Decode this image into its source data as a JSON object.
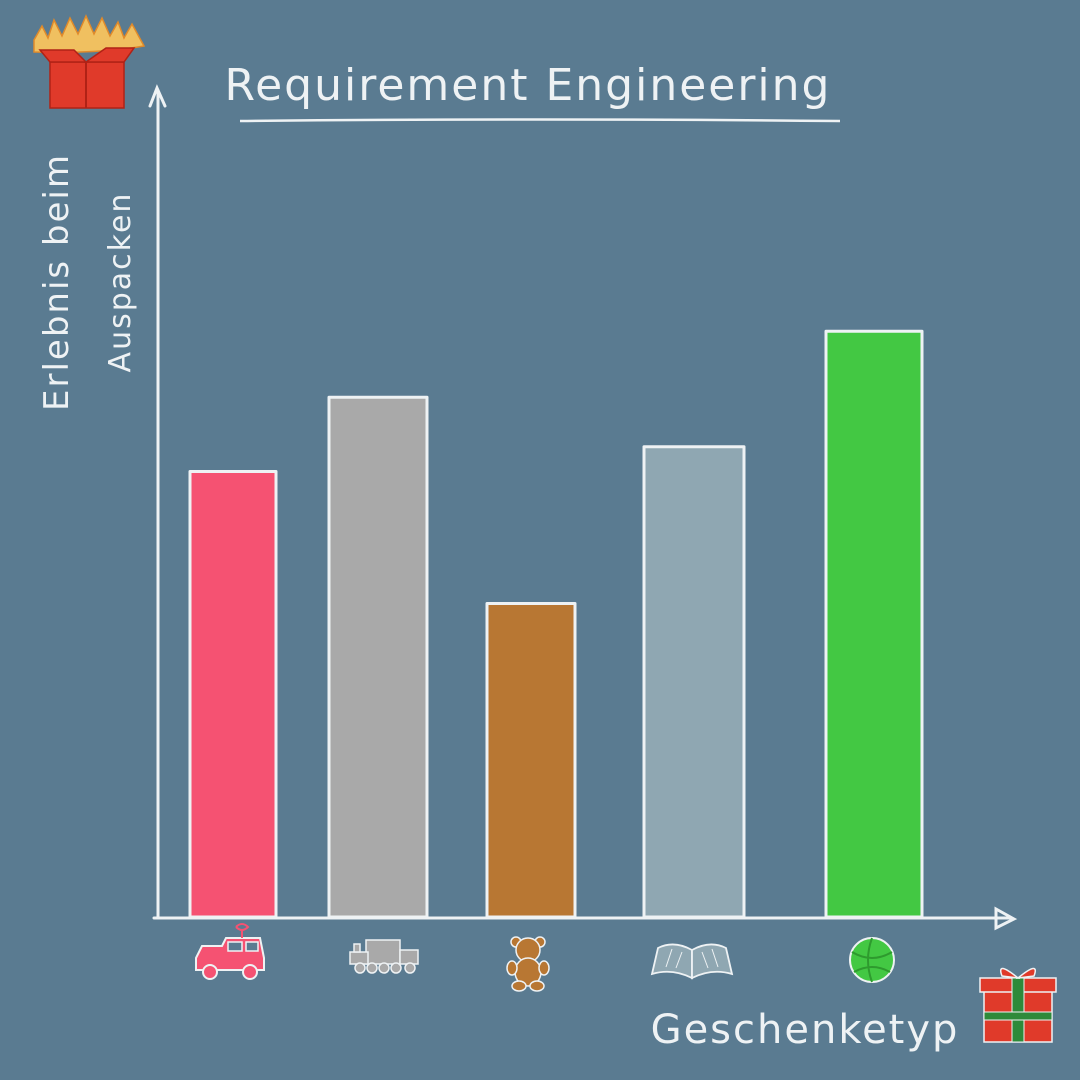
{
  "chart_data": {
    "type": "bar",
    "title": "Requirement Engineering",
    "ylabel": "Erlebnis beim Auspacken",
    "ylabel_lines": [
      "Erlebnis beim",
      "Auspacken"
    ],
    "xlabel": "Geschenketyp",
    "ylim": [
      0,
      100
    ],
    "grid": false,
    "legend": "none",
    "categories": [
      "car-icon",
      "train-icon",
      "teddy-bear-icon",
      "book-icon",
      "ball-icon"
    ],
    "values": [
      54,
      63,
      38,
      57,
      71
    ],
    "colors": [
      "#f55272",
      "#a9a9a9",
      "#b87733",
      "#8fa7b2",
      "#43c843"
    ]
  },
  "colors": {
    "background": "#5a7b91",
    "chalk": "#eef2f4",
    "gift_red": "#e03a2a",
    "flame": "#f0c060"
  },
  "icons": {
    "top_left": "open-gift-box-with-flames-icon",
    "bottom_right": "wrapped-gift-icon"
  }
}
